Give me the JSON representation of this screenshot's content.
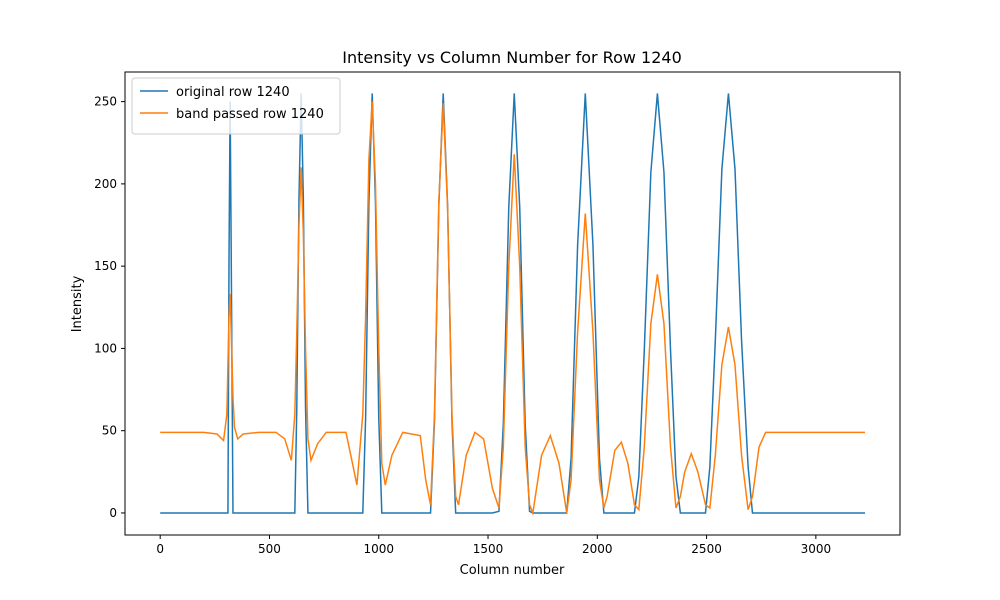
{
  "chart_data": {
    "type": "line",
    "title": "Intensity vs Column Number for Row 1240",
    "x_label": "Column number",
    "y_label": "Intensity",
    "x": [
      0,
      100,
      200,
      260,
      290,
      305,
      310,
      315,
      320,
      325,
      333,
      340,
      355,
      380,
      450,
      530,
      570,
      600,
      616,
      625,
      635,
      645,
      655,
      665,
      676,
      690,
      720,
      760,
      850,
      880,
      900,
      927,
      940,
      955,
      970,
      985,
      1000,
      1014,
      1030,
      1060,
      1110,
      1190,
      1215,
      1237,
      1255,
      1275,
      1295,
      1315,
      1335,
      1352,
      1365,
      1400,
      1440,
      1480,
      1520,
      1550,
      1570,
      1595,
      1620,
      1645,
      1670,
      1690,
      1705,
      1745,
      1785,
      1825,
      1860,
      1880,
      1910,
      1945,
      1980,
      2010,
      2030,
      2045,
      2080,
      2110,
      2140,
      2170,
      2190,
      2215,
      2245,
      2275,
      2305,
      2335,
      2360,
      2380,
      2400,
      2430,
      2460,
      2495,
      2515,
      2540,
      2570,
      2600,
      2630,
      2660,
      2690,
      2710,
      2740,
      2770,
      2800,
      3000,
      3225
    ],
    "series": [
      {
        "name": "original row 1240",
        "color": "#1f77b4",
        "values": [
          0,
          0,
          0,
          0,
          0,
          0,
          0,
          157,
          250,
          157,
          0,
          0,
          0,
          0,
          0,
          0,
          0,
          0,
          0,
          64,
          191,
          255,
          191,
          64,
          0,
          0,
          0,
          0,
          0,
          0,
          0,
          0,
          58,
          189,
          255,
          189,
          58,
          0,
          0,
          0,
          0,
          0,
          0,
          0,
          56,
          187,
          255,
          187,
          56,
          0,
          0,
          0,
          0,
          0,
          0,
          1,
          54,
          186,
          255,
          186,
          54,
          1,
          0,
          0,
          0,
          0,
          0,
          33,
          163,
          255,
          163,
          33,
          0,
          0,
          0,
          0,
          0,
          0,
          22,
          99,
          207,
          255,
          207,
          99,
          22,
          0,
          0,
          0,
          0,
          0,
          28,
          105,
          209,
          255,
          209,
          105,
          28,
          0,
          0,
          0,
          0,
          0,
          0
        ]
      },
      {
        "name": "band passed row 1240",
        "color": "#ff7f0e",
        "values": [
          49,
          49,
          49,
          48,
          44,
          60,
          90,
          120,
          133,
          110,
          70,
          52,
          45,
          48,
          49,
          49,
          45,
          32,
          60,
          110,
          175,
          210,
          170,
          100,
          45,
          32,
          42,
          49,
          49,
          30,
          17,
          60,
          120,
          215,
          250,
          200,
          100,
          30,
          17,
          35,
          49,
          47,
          20,
          5,
          60,
          190,
          249,
          185,
          60,
          10,
          5,
          35,
          49,
          45,
          15,
          3,
          40,
          150,
          218,
          150,
          40,
          5,
          0,
          35,
          47,
          30,
          0,
          20,
          110,
          182,
          110,
          20,
          3,
          10,
          38,
          43,
          30,
          5,
          2,
          40,
          115,
          145,
          115,
          40,
          3,
          10,
          25,
          36,
          25,
          5,
          3,
          35,
          90,
          113,
          90,
          35,
          2,
          10,
          40,
          49,
          49,
          49,
          49
        ]
      }
    ],
    "xlim": [
      -161,
      3385
    ],
    "ylim": [
      -13.4,
      268
    ],
    "xticks": [
      0,
      500,
      1000,
      1500,
      2000,
      2500,
      3000
    ],
    "yticks": [
      0,
      50,
      100,
      150,
      200,
      250
    ],
    "legend": "upper left",
    "grid": false
  }
}
